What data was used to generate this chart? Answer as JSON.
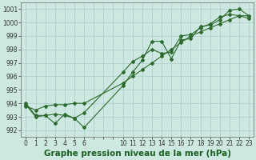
{
  "background_color": "#cce8e0",
  "grid_color": "#aacccc",
  "line_color": "#2d6a2d",
  "title": "Graphe pression niveau de la mer (hPa)",
  "xlim": [
    -0.5,
    23.5
  ],
  "ylim": [
    991.5,
    1001.5
  ],
  "yticks": [
    992,
    993,
    994,
    995,
    996,
    997,
    998,
    999,
    1000,
    1001
  ],
  "xtick_labels": [
    "0",
    "1",
    "2",
    "3",
    "4",
    "5",
    "6",
    "",
    "",
    "",
    "10",
    "11",
    "12",
    "13",
    "14",
    "15",
    "16",
    "17",
    "18",
    "19",
    "20",
    "21",
    "22",
    "23"
  ],
  "xtick_positions": [
    0,
    1,
    2,
    3,
    4,
    5,
    6,
    7,
    8,
    9,
    10,
    11,
    12,
    13,
    14,
    15,
    16,
    17,
    18,
    19,
    20,
    21,
    22,
    23
  ],
  "series1_x": [
    0,
    1,
    2,
    3,
    4,
    5,
    6,
    10,
    11,
    12,
    13,
    14,
    15,
    16,
    17,
    18,
    19,
    20,
    21,
    22,
    23
  ],
  "series1_y": [
    994.0,
    993.1,
    993.1,
    992.5,
    993.2,
    992.9,
    992.2,
    995.3,
    996.3,
    997.2,
    998.6,
    998.6,
    997.3,
    998.7,
    998.8,
    999.7,
    999.8,
    1000.2,
    1000.9,
    1001.0,
    1000.5
  ],
  "series2_x": [
    0,
    1,
    2,
    3,
    4,
    5,
    6,
    10,
    11,
    12,
    13,
    14,
    15,
    16,
    17,
    18,
    19,
    20,
    21,
    22,
    23
  ],
  "series2_y": [
    993.9,
    993.0,
    993.1,
    993.2,
    993.1,
    992.9,
    993.3,
    996.3,
    997.1,
    997.5,
    998.0,
    997.7,
    997.8,
    999.0,
    999.1,
    999.6,
    999.9,
    1000.4,
    1000.6,
    1000.5,
    1000.3
  ],
  "series3_x": [
    0,
    1,
    2,
    3,
    4,
    5,
    6,
    10,
    11,
    12,
    13,
    14,
    15,
    16,
    17,
    18,
    19,
    20,
    21,
    22,
    23
  ],
  "series3_y": [
    993.8,
    993.5,
    993.8,
    993.9,
    993.9,
    994.0,
    994.0,
    995.5,
    996.0,
    996.5,
    997.0,
    997.5,
    998.0,
    998.5,
    999.0,
    999.3,
    999.6,
    999.9,
    1000.2,
    1000.5,
    1000.5
  ],
  "marker": "D",
  "markersize": 2.0,
  "linewidth": 0.8,
  "title_fontsize": 7.5,
  "tick_fontsize": 5.5
}
